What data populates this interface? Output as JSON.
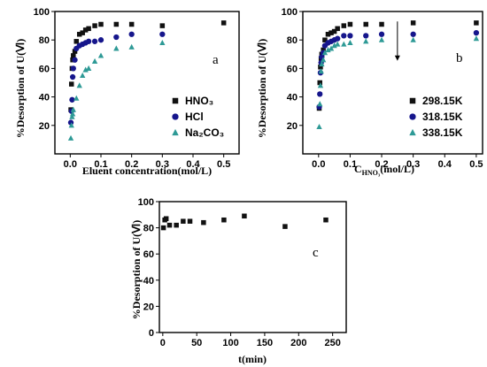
{
  "colors": {
    "black": "#111111",
    "blue": "#16168c",
    "teal": "#2e9a96"
  },
  "chart_data": [
    {
      "type": "scatter",
      "panel_letter": "a",
      "ylabel": "%Desorption of U(Ⅵ)",
      "xlabel": "Eluent concentration(mol/L)",
      "xlim": [
        -0.05,
        0.55
      ],
      "ylim": [
        0,
        100
      ],
      "xticks": [
        0.0,
        0.1,
        0.2,
        0.3,
        0.4,
        0.5
      ],
      "xtick_labels": [
        "0.0",
        "0.1",
        "0.2",
        "0.3",
        "0.4",
        "0.5"
      ],
      "yticks": [
        20,
        40,
        60,
        80,
        100
      ],
      "ytick_labels": [
        "20",
        "40",
        "60",
        "80",
        "100"
      ],
      "legend": "bottom-right",
      "series": [
        {
          "name": "HNO₃",
          "marker": "square",
          "color": "#111111",
          "x": [
            0.002,
            0.004,
            0.006,
            0.008,
            0.01,
            0.015,
            0.02,
            0.03,
            0.04,
            0.05,
            0.06,
            0.08,
            0.1,
            0.15,
            0.2,
            0.3,
            0.5
          ],
          "y": [
            31,
            49,
            60,
            66,
            69,
            72,
            79,
            84,
            85,
            87,
            88,
            90,
            91,
            91,
            91,
            90,
            92
          ]
        },
        {
          "name": "HCl",
          "marker": "circle",
          "color": "#16168c",
          "x": [
            0.002,
            0.004,
            0.006,
            0.008,
            0.01,
            0.015,
            0.02,
            0.03,
            0.04,
            0.05,
            0.06,
            0.08,
            0.1,
            0.15,
            0.2,
            0.3
          ],
          "y": [
            22,
            30,
            38,
            54,
            60,
            66,
            74,
            76,
            77,
            78,
            79,
            79,
            80,
            82,
            84,
            84
          ]
        },
        {
          "name": "Na₂CO₃",
          "marker": "triangle",
          "color": "#2e9a96",
          "x": [
            0.002,
            0.004,
            0.006,
            0.008,
            0.01,
            0.02,
            0.03,
            0.04,
            0.05,
            0.06,
            0.08,
            0.1,
            0.15,
            0.2,
            0.3
          ],
          "y": [
            11,
            20,
            26,
            28,
            31,
            39,
            48,
            55,
            59,
            60,
            65,
            69,
            74,
            75,
            78
          ]
        }
      ]
    },
    {
      "type": "scatter",
      "panel_letter": "b",
      "ylabel": "%Desorption of U(Ⅵ)",
      "xlabel_main": "C",
      "xlabel_sub": "HNO₃",
      "xlabel_rest": "(mol/L)",
      "xlim": [
        -0.05,
        0.52
      ],
      "ylim": [
        0,
        100
      ],
      "xticks": [
        0.0,
        0.1,
        0.2,
        0.3,
        0.4,
        0.5
      ],
      "xtick_labels": [
        "0.0",
        "0.1",
        "0.2",
        "0.3",
        "0.4",
        "0.5"
      ],
      "yticks": [
        20,
        40,
        60,
        80,
        100
      ],
      "ytick_labels": [
        "20",
        "40",
        "60",
        "80",
        "100"
      ],
      "legend": "bottom-right",
      "arrow": {
        "x": 0.25,
        "y_from": 93,
        "y_to": 66
      },
      "series": [
        {
          "name": "298.15K",
          "marker": "square",
          "color": "#111111",
          "x": [
            0.002,
            0.004,
            0.006,
            0.008,
            0.01,
            0.015,
            0.02,
            0.03,
            0.04,
            0.05,
            0.06,
            0.08,
            0.1,
            0.15,
            0.2,
            0.3,
            0.5
          ],
          "y": [
            32,
            50,
            61,
            67,
            70,
            73,
            80,
            84,
            85,
            86,
            88,
            90,
            91,
            91,
            91,
            92,
            92
          ]
        },
        {
          "name": "318.15K",
          "marker": "circle",
          "color": "#16168c",
          "x": [
            0.002,
            0.004,
            0.006,
            0.008,
            0.01,
            0.015,
            0.02,
            0.03,
            0.04,
            0.05,
            0.06,
            0.08,
            0.1,
            0.15,
            0.2,
            0.3,
            0.5
          ],
          "y": [
            33,
            42,
            57,
            64,
            68,
            71,
            76,
            78,
            79,
            80,
            81,
            83,
            83,
            83,
            84,
            84,
            85
          ]
        },
        {
          "name": "338.15K",
          "marker": "triangle",
          "color": "#2e9a96",
          "x": [
            0.002,
            0.004,
            0.006,
            0.008,
            0.01,
            0.015,
            0.02,
            0.03,
            0.04,
            0.05,
            0.06,
            0.08,
            0.1,
            0.15,
            0.2,
            0.3,
            0.5
          ],
          "y": [
            19,
            35,
            48,
            58,
            63,
            66,
            71,
            73,
            74,
            76,
            77,
            77,
            78,
            79,
            80,
            80,
            81
          ]
        }
      ]
    },
    {
      "type": "scatter",
      "panel_letter": "c",
      "ylabel": "%Desorption of U(Ⅵ)",
      "xlabel": "t(min)",
      "xlim": [
        -5,
        270
      ],
      "ylim": [
        0,
        100
      ],
      "xticks": [
        0,
        50,
        100,
        150,
        200,
        250
      ],
      "xtick_labels": [
        "0",
        "50",
        "100",
        "150",
        "200",
        "250"
      ],
      "yticks": [
        0,
        20,
        40,
        60,
        80,
        100
      ],
      "ytick_labels": [
        "0",
        "20",
        "40",
        "60",
        "80",
        "100"
      ],
      "series": [
        {
          "name": "",
          "marker": "square",
          "color": "#111111",
          "x": [
            1,
            3,
            5,
            10,
            20,
            30,
            40,
            60,
            90,
            120,
            180,
            240
          ],
          "y": [
            80,
            86,
            87,
            82,
            82,
            85,
            85,
            84,
            86,
            89,
            81,
            86
          ]
        }
      ]
    }
  ]
}
